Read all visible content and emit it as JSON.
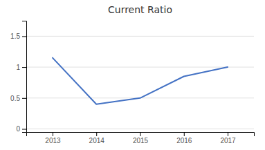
{
  "chart_data": {
    "type": "line",
    "title": "Current Ratio",
    "x": [
      2013,
      2014,
      2015,
      2016,
      2017
    ],
    "values": [
      1.15,
      0.4,
      0.5,
      0.85,
      1.0
    ],
    "color": "#4472C4",
    "xlim": [
      2012.4,
      2017.6
    ],
    "ylim": [
      -0.05,
      1.75
    ],
    "xticks": [
      2013,
      2014,
      2015,
      2016,
      2017
    ],
    "yticks": [
      0,
      0.5,
      1,
      1.5
    ],
    "grid": true
  }
}
